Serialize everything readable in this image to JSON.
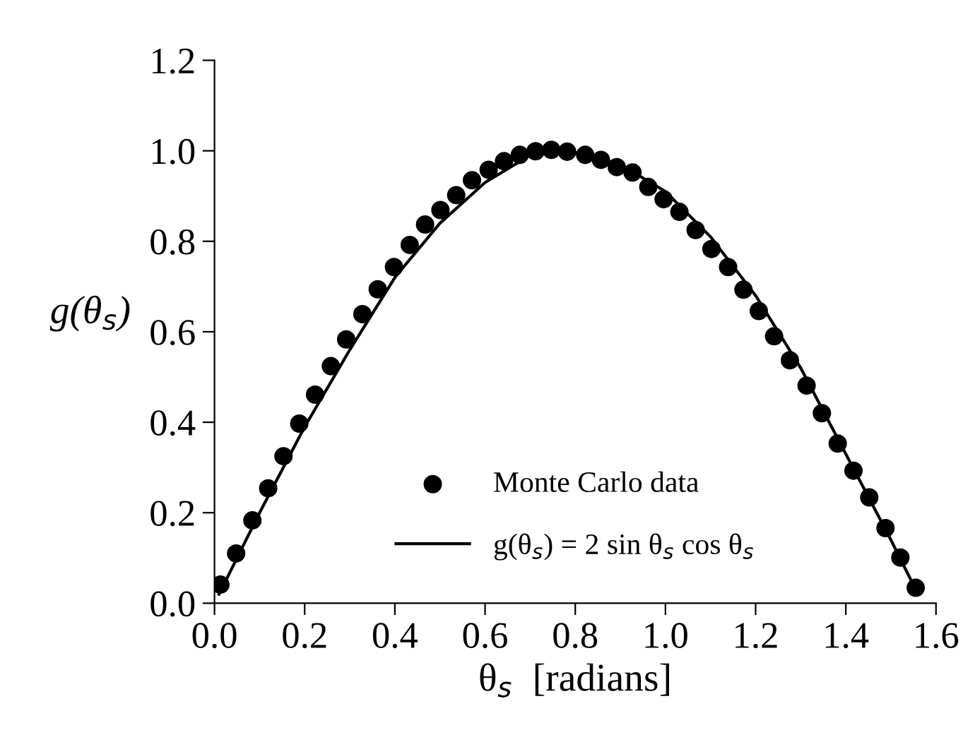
{
  "chart_data": {
    "type": "scatter",
    "xlabel": "θ$_{s}$  [radians]",
    "ylabel": "g(θ$_{s}$)",
    "xlim": [
      0,
      1.6
    ],
    "ylim": [
      0,
      1.2
    ],
    "xticks": [
      {
        "value": 0,
        "label": "0.0"
      },
      0.2,
      0.4,
      0.6,
      0.8,
      {
        "value": 1,
        "label": "1.0"
      },
      1.2,
      1.4,
      1.6
    ],
    "yticks": [
      {
        "value": 0,
        "label": "0.0"
      },
      0.2,
      0.4,
      0.6,
      0.8,
      {
        "value": 1,
        "label": "1.0"
      },
      1.2
    ],
    "grid": false,
    "legend": "bottom",
    "marker": "circle",
    "series": [
      {
        "name": "Monte Carlo data",
        "color": "#000000",
        "x": [
          0.013,
          0.048,
          0.084,
          0.119,
          0.153,
          0.188,
          0.223,
          0.258,
          0.292,
          0.328,
          0.362,
          0.398,
          0.433,
          0.467,
          0.501,
          0.536,
          0.571,
          0.608,
          0.642,
          0.677,
          0.712,
          0.747,
          0.782,
          0.822,
          0.857,
          0.892,
          0.927,
          0.962,
          0.996,
          1.031,
          1.067,
          1.102,
          1.139,
          1.173,
          1.207,
          1.241,
          1.276,
          1.313,
          1.347,
          1.382,
          1.417,
          1.452,
          1.488,
          1.521,
          1.555
        ],
        "values": [
          0.041,
          0.11,
          0.183,
          0.254,
          0.325,
          0.397,
          0.461,
          0.524,
          0.583,
          0.639,
          0.694,
          0.743,
          0.792,
          0.837,
          0.869,
          0.902,
          0.935,
          0.958,
          0.977,
          0.991,
          0.999,
          1.002,
          0.998,
          0.991,
          0.98,
          0.964,
          0.952,
          0.92,
          0.893,
          0.865,
          0.825,
          0.783,
          0.743,
          0.693,
          0.646,
          0.59,
          0.537,
          0.481,
          0.42,
          0.353,
          0.293,
          0.234,
          0.166,
          0.101,
          0.034
        ]
      },
      {
        "name": "g(θ$_{s}$) = 2 sin θ$_{s}$ cos θ$_{s}$",
        "type": "line",
        "color": "#000000",
        "marker": "none",
        "line_style": "solid",
        "x": [
          0.01,
          0.05,
          0.1,
          0.2,
          0.3,
          0.4,
          0.5,
          0.6,
          0.7,
          0.785,
          0.9,
          1.0,
          1.1,
          1.2,
          1.3,
          1.4,
          1.5,
          1.555
        ],
        "values": [
          0.02,
          0.1,
          0.2,
          0.39,
          0.56,
          0.72,
          0.84,
          0.93,
          0.99,
          1.0,
          0.97,
          0.91,
          0.81,
          0.68,
          0.52,
          0.33,
          0.14,
          0.03
        ]
      }
    ]
  }
}
